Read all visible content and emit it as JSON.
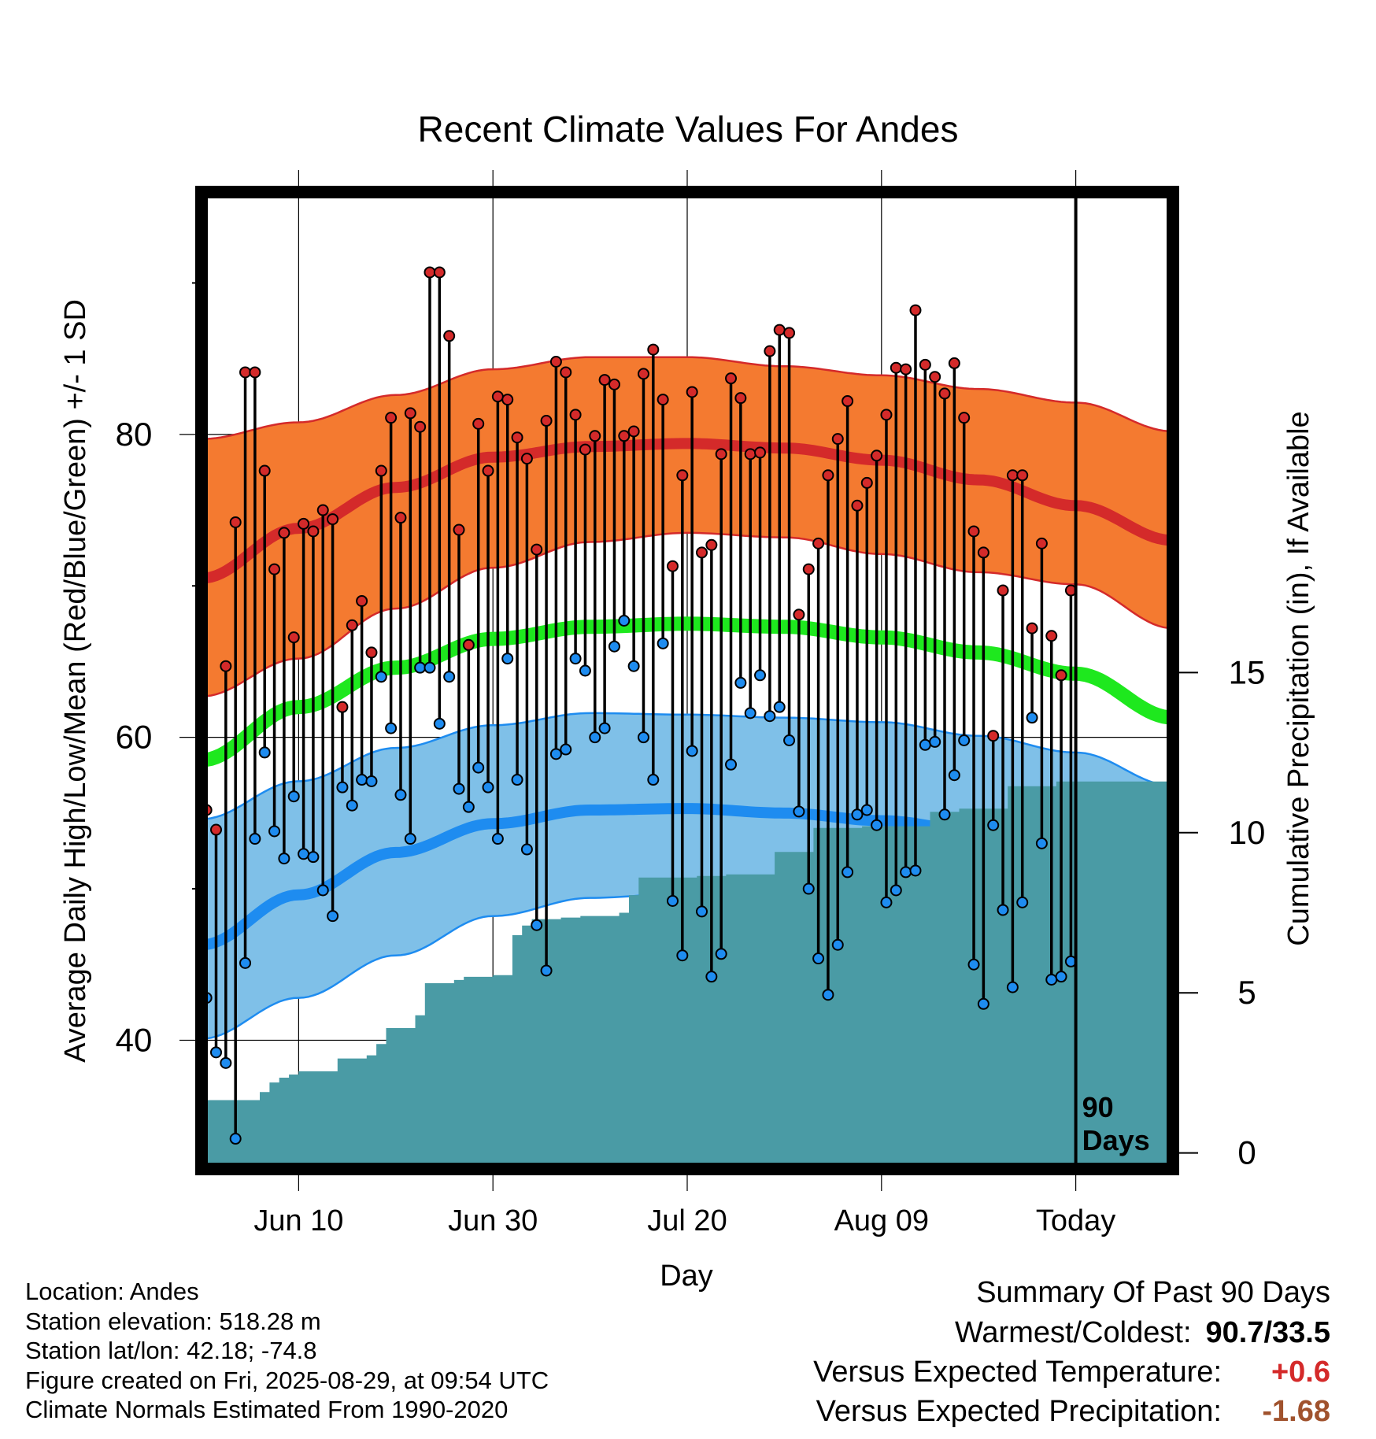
{
  "chart_data": {
    "type": "line",
    "title": "Recent Climate Values For Andes",
    "xlabel": "Day",
    "ylabel": "Average Daily High/Low/Mean (Red/Blue/Green) +/- 1 SD",
    "ylabel_right": "Cumulative Precipitation (in), If Available",
    "x_ticks": [
      "Jun 10",
      "Jun 30",
      "Jul 20",
      "Aug 09",
      "Today"
    ],
    "x_tick_day": [
      10,
      30,
      50,
      70,
      90
    ],
    "x_range": [
      0,
      100
    ],
    "y_ticks": [
      40,
      60,
      80
    ],
    "ylim": [
      31.5,
      96
    ],
    "y2_ticks": [
      0,
      5,
      10,
      15
    ],
    "y2lim": [
      -0.5,
      30
    ],
    "grid": true,
    "today_marker_day": 90,
    "today_label": "90\nDays",
    "colors": {
      "high_band": "#F47A30",
      "high_mean": "#D42A2A",
      "high_edge": "#D42A2A",
      "mean": "#1EE81E",
      "low_band": "#7FC0E8",
      "low_mean": "#1E8CF0",
      "low_edge": "#1E8CF0",
      "precip": "#4A9BA5",
      "high_point": "#D42A2A",
      "low_point": "#1E8CF0",
      "pos_anom": "#D42A2A",
      "neg_anom": "#A0522D"
    },
    "normals": {
      "days": [
        0,
        10,
        20,
        30,
        40,
        50,
        60,
        70,
        80,
        90,
        100
      ],
      "high_mean": [
        70.5,
        73.8,
        76.5,
        78.5,
        79.2,
        79.4,
        79.1,
        78.3,
        77,
        75.3,
        73
      ],
      "high_sd_upper": [
        79.7,
        80.8,
        82.6,
        84.3,
        85.1,
        85.1,
        84.5,
        83.9,
        83,
        82.1,
        80.2
      ],
      "high_sd_lower": [
        62.7,
        65.2,
        68.5,
        71.2,
        72.9,
        73.5,
        73.2,
        72.1,
        70.9,
        70.1,
        67.2
      ],
      "mean": [
        58.5,
        62,
        64.6,
        66.5,
        67.3,
        67.5,
        67.3,
        66.6,
        65.6,
        64.2,
        61.3
      ],
      "low_mean": [
        46.3,
        49.6,
        52.4,
        54.3,
        55.2,
        55.3,
        55,
        54.5,
        53.8,
        52.2,
        49.6
      ],
      "low_sd_upper": [
        54.6,
        57.1,
        59.3,
        60.8,
        61.6,
        61.5,
        61.3,
        61,
        60.1,
        59,
        56.8
      ],
      "low_sd_lower": [
        40.1,
        42.8,
        45.6,
        48.2,
        49.4,
        49.7,
        49.4,
        48.9,
        47.5,
        45.3,
        43.2
      ]
    },
    "series": [
      {
        "name": "Daily High",
        "x": [
          0,
          1,
          2,
          3,
          4,
          5,
          6,
          7,
          8,
          9,
          10,
          11,
          12,
          13,
          14,
          15,
          16,
          17,
          18,
          19,
          20,
          21,
          22,
          23,
          24,
          25,
          26,
          27,
          28,
          29,
          30,
          31,
          32,
          33,
          34,
          35,
          36,
          37,
          38,
          39,
          40,
          41,
          42,
          43,
          44,
          45,
          46,
          47,
          48,
          49,
          50,
          51,
          52,
          53,
          54,
          55,
          56,
          57,
          58,
          59,
          60,
          61,
          62,
          63,
          64,
          65,
          66,
          67,
          68,
          69,
          70,
          71,
          72,
          73,
          74,
          75,
          76,
          77,
          78,
          79,
          80,
          81,
          82,
          83,
          84,
          85,
          86,
          87,
          88,
          89
        ],
        "values": [
          55.2,
          53.9,
          64.7,
          74.2,
          84.1,
          84.1,
          77.6,
          71.1,
          73.5,
          66.6,
          74.1,
          73.6,
          75,
          74.4,
          62,
          67.4,
          69,
          65.6,
          77.6,
          81.1,
          74.5,
          81.4,
          80.5,
          90.7,
          90.7,
          86.5,
          73.7,
          66.1,
          80.7,
          77.6,
          82.5,
          82.3,
          79.8,
          78.4,
          72.4,
          80.9,
          84.8,
          84.1,
          81.3,
          79,
          79.9,
          83.6,
          83.3,
          79.9,
          80.2,
          84,
          85.6,
          82.3,
          71.3,
          77.3,
          82.8,
          72.2,
          72.7,
          78.7,
          83.7,
          82.4,
          78.7,
          78.8,
          85.5,
          86.9,
          86.7,
          68.1,
          71.1,
          72.8,
          77.3,
          79.7,
          82.2,
          75.3,
          76.8,
          78.6,
          81.3,
          84.4,
          84.3,
          88.2,
          84.6,
          83.8,
          82.7,
          84.7,
          81.1,
          73.6,
          72.2,
          60.1,
          69.7,
          77.3,
          77.3,
          67.2,
          72.8,
          66.7,
          64.1,
          69.7
        ]
      },
      {
        "name": "Daily Low",
        "x": [
          0,
          1,
          2,
          3,
          4,
          5,
          6,
          7,
          8,
          9,
          10,
          11,
          12,
          13,
          14,
          15,
          16,
          17,
          18,
          19,
          20,
          21,
          22,
          23,
          24,
          25,
          26,
          27,
          28,
          29,
          30,
          31,
          32,
          33,
          34,
          35,
          36,
          37,
          38,
          39,
          40,
          41,
          42,
          43,
          44,
          45,
          46,
          47,
          48,
          49,
          50,
          51,
          52,
          53,
          54,
          55,
          56,
          57,
          58,
          59,
          60,
          61,
          62,
          63,
          64,
          65,
          66,
          67,
          68,
          69,
          70,
          71,
          72,
          73,
          74,
          75,
          76,
          77,
          78,
          79,
          80,
          81,
          82,
          83,
          84,
          85,
          86,
          87,
          88,
          89
        ],
        "values": [
          42.8,
          39.2,
          38.5,
          33.5,
          45.1,
          53.3,
          59,
          53.8,
          52,
          56.1,
          52.3,
          52.1,
          49.9,
          48.2,
          56.7,
          55.5,
          57.2,
          57.1,
          64,
          60.6,
          56.2,
          53.3,
          64.6,
          64.6,
          60.9,
          64,
          56.6,
          55.4,
          58,
          56.7,
          53.3,
          65.2,
          57.2,
          52.6,
          47.6,
          44.6,
          58.9,
          59.2,
          65.2,
          64.4,
          60,
          60.6,
          66,
          67.7,
          64.7,
          60,
          57.2,
          66.2,
          49.2,
          45.6,
          59.1,
          48.5,
          44.2,
          45.7,
          58.2,
          63.6,
          61.6,
          64.1,
          61.4,
          62,
          59.8,
          55.1,
          50,
          45.4,
          43,
          46.3,
          51.1,
          54.9,
          55.2,
          54.2,
          49.1,
          49.9,
          51.1,
          51.2,
          59.5,
          59.7,
          54.9,
          57.5,
          59.8,
          45,
          42.4,
          54.2,
          48.6,
          43.5,
          49.1,
          61.3,
          53,
          44,
          44.2,
          45.2
        ]
      },
      {
        "name": "Cumulative Precipitation",
        "x": [
          0,
          1,
          2,
          3,
          4,
          5,
          6,
          7,
          8,
          9,
          10,
          11,
          12,
          13,
          14,
          15,
          16,
          17,
          18,
          19,
          20,
          21,
          22,
          23,
          24,
          25,
          26,
          27,
          28,
          29,
          30,
          31,
          32,
          33,
          34,
          35,
          36,
          37,
          38,
          39,
          40,
          41,
          42,
          43,
          44,
          45,
          46,
          47,
          48,
          49,
          50,
          51,
          52,
          53,
          54,
          55,
          56,
          57,
          58,
          59,
          60,
          61,
          62,
          63,
          64,
          65,
          66,
          67,
          68,
          69,
          70,
          71,
          72,
          73,
          74,
          75,
          76,
          77,
          78,
          79,
          80,
          81,
          82,
          83,
          84,
          85,
          86,
          87,
          88,
          89,
          90,
          91,
          92,
          93,
          94,
          95,
          96,
          97,
          98,
          99,
          100
        ],
        "values": [
          1.65,
          1.65,
          1.65,
          1.65,
          1.65,
          1.65,
          1.9,
          2.2,
          2.35,
          2.45,
          2.55,
          2.55,
          2.55,
          2.55,
          2.95,
          2.95,
          2.95,
          3.05,
          3.4,
          3.9,
          3.9,
          3.9,
          4.3,
          5.3,
          5.3,
          5.3,
          5.4,
          5.5,
          5.5,
          5.5,
          5.55,
          5.55,
          6.8,
          7.1,
          7.3,
          7.3,
          7.3,
          7.35,
          7.35,
          7.4,
          7.4,
          7.4,
          7.4,
          7.5,
          8.05,
          8.6,
          8.6,
          8.6,
          8.6,
          8.6,
          8.6,
          8.65,
          8.65,
          8.65,
          8.7,
          8.7,
          8.7,
          8.7,
          8.7,
          9.4,
          9.4,
          9.4,
          9.4,
          10.15,
          10.15,
          10.15,
          10.15,
          10.15,
          10.2,
          10.2,
          10.2,
          10.2,
          10.2,
          10.2,
          10.2,
          10.65,
          10.65,
          10.65,
          10.75,
          10.75,
          10.75,
          10.75,
          10.75,
          11.45,
          11.45,
          11.45,
          11.45,
          11.45,
          11.6,
          11.6,
          11.6,
          11.6,
          11.6,
          11.6,
          11.6,
          11.6,
          11.6,
          11.6,
          11.6,
          11.6,
          11.6
        ]
      }
    ]
  },
  "footer": {
    "location": "Location: Andes",
    "elevation": "Station elevation: 518.28 m",
    "latlon": "Station lat/lon: 42.18; -74.8",
    "created": "Figure created on Fri, 2025-08-29, at 09:54 UTC",
    "normals": "Climate Normals Estimated From 1990-2020"
  },
  "summary": {
    "title": "Summary Of Past 90 Days",
    "warmest_label": "Warmest/Coldest:",
    "warmest_value": "90.7/33.5",
    "temp_label": "Versus Expected Temperature:",
    "temp_value": "+0.6",
    "precip_label": "Versus Expected Precipitation:",
    "precip_value": "-1.68"
  }
}
